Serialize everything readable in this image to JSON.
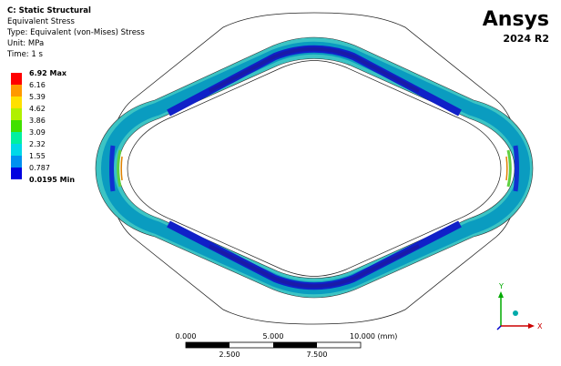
{
  "header": {
    "title": "C: Static Structural",
    "result": "Equivalent Stress",
    "type": "Type: Equivalent (von-Mises) Stress",
    "unit": "Unit: MPa",
    "time": "Time: 1 s"
  },
  "legend": {
    "labels": [
      "6.92 Max",
      "6.16",
      "5.39",
      "4.62",
      "3.86",
      "3.09",
      "2.32",
      "1.55",
      "0.787",
      "0.0195 Min"
    ]
  },
  "logo": {
    "brand": "Ansys",
    "version": "2024 R2"
  },
  "scale_bar": {
    "top_labels": [
      "0.000",
      "5.000",
      "10.000 (mm)"
    ],
    "bottom_labels": [
      "2.500",
      "7.500"
    ]
  },
  "triad": {
    "y": "Y",
    "x": "X"
  }
}
